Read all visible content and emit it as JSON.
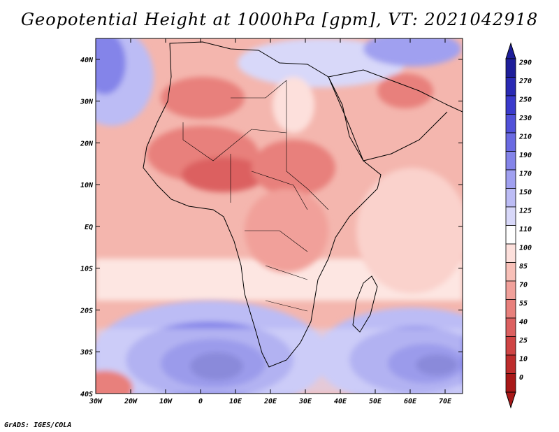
{
  "header": {
    "title": "Geopotential Height at 1000hPa [gpm], VT: 2021042918"
  },
  "footer": {
    "credit": "GrADS: IGES/COLA"
  },
  "map": {
    "lat_labels": [
      "40N",
      "30N",
      "20N",
      "10N",
      "EQ",
      "10S",
      "20S",
      "30S",
      "40S"
    ],
    "lon_labels": [
      "30W",
      "20W",
      "10W",
      "0",
      "10E",
      "20E",
      "30E",
      "40E",
      "50E",
      "60E",
      "70E"
    ]
  },
  "colorbar": {
    "levels": [
      "290",
      "270",
      "250",
      "230",
      "210",
      "190",
      "170",
      "150",
      "125",
      "110",
      "100",
      "85",
      "70",
      "55",
      "40",
      "25",
      "10",
      "0"
    ],
    "colors": [
      "#1e1e9a",
      "#2a2ab4",
      "#3a3acc",
      "#5151d9",
      "#6a6ae2",
      "#8484e9",
      "#a0a0f0",
      "#bcbcf5",
      "#d8d8f9",
      "#ffffff",
      "#fde0dc",
      "#f8c0b8",
      "#f1a09a",
      "#e8807c",
      "#dc6060",
      "#cf4444",
      "#bd2c2c",
      "#a81818"
    ]
  }
}
